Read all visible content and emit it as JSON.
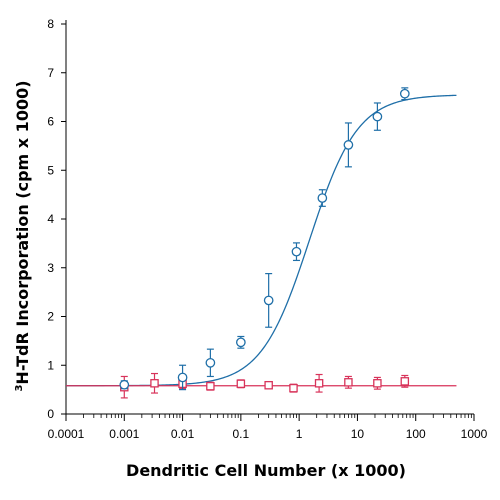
{
  "chart_data": {
    "type": "scatter",
    "title": "",
    "xlabel": "Dendritic Cell Number (x 1000)",
    "ylabel_sup": "3",
    "ylabel": "H-TdR Incorporation (cpm x 1000)",
    "x_scale": "log",
    "xlim": [
      0.0001,
      1000
    ],
    "ylim": [
      0,
      8
    ],
    "x_ticks": [
      "0.0001",
      "0.001",
      "0.01",
      "0.1",
      "1",
      "10",
      "100",
      "1000"
    ],
    "y_ticks": [
      "0",
      "1",
      "2",
      "3",
      "4",
      "5",
      "6",
      "7",
      "8"
    ],
    "grid": false,
    "legend": "none",
    "series": [
      {
        "marker": "circle",
        "color": "#1f6fa8",
        "fit": {
          "model": "sigmoid",
          "bottom": 0.58,
          "top": 6.55,
          "ec50": 1.5,
          "hill": 1.05,
          "x_range": [
            0.0001,
            500
          ]
        },
        "points": [
          {
            "x": 0.001,
            "y": 0.6,
            "err": 0.08
          },
          {
            "x": 0.01,
            "y": 0.75,
            "err": 0.25
          },
          {
            "x": 0.03,
            "y": 1.05,
            "err": 0.28
          },
          {
            "x": 0.1,
            "y": 1.47,
            "err": 0.12
          },
          {
            "x": 0.3,
            "y": 2.33,
            "err": 0.55
          },
          {
            "x": 0.9,
            "y": 3.33,
            "err": 0.18
          },
          {
            "x": 2.5,
            "y": 4.43,
            "err": 0.17
          },
          {
            "x": 7,
            "y": 5.52,
            "err": 0.45
          },
          {
            "x": 22,
            "y": 6.1,
            "err": 0.28
          },
          {
            "x": 65,
            "y": 6.57,
            "err": 0.12
          }
        ]
      },
      {
        "marker": "square",
        "color": "#d8335a",
        "fit": {
          "model": "constant",
          "value": 0.58,
          "x_range": [
            0.0001,
            500
          ]
        },
        "points": [
          {
            "x": 0.001,
            "y": 0.55,
            "err": 0.22
          },
          {
            "x": 0.0033,
            "y": 0.63,
            "err": 0.2
          },
          {
            "x": 0.01,
            "y": 0.62,
            "err": 0.1
          },
          {
            "x": 0.03,
            "y": 0.57,
            "err": 0.08
          },
          {
            "x": 0.1,
            "y": 0.62,
            "err": 0.08
          },
          {
            "x": 0.3,
            "y": 0.59,
            "err": 0.06
          },
          {
            "x": 0.8,
            "y": 0.53,
            "err": 0.08
          },
          {
            "x": 2.2,
            "y": 0.63,
            "err": 0.18
          },
          {
            "x": 7,
            "y": 0.65,
            "err": 0.12
          },
          {
            "x": 22,
            "y": 0.63,
            "err": 0.12
          },
          {
            "x": 65,
            "y": 0.67,
            "err": 0.12
          }
        ]
      }
    ]
  }
}
